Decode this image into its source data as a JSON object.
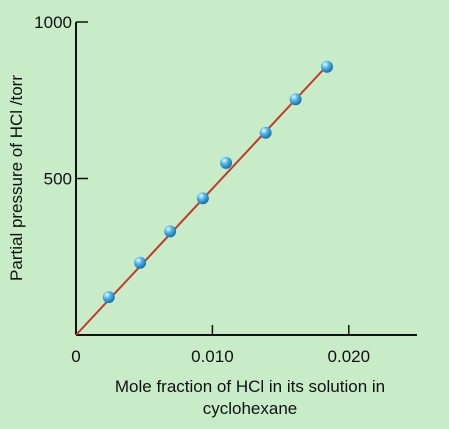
{
  "chart_data": {
    "type": "scatter",
    "xlabel_lines": [
      "Mole fraction of HCl in its solution in",
      "cyclohexane"
    ],
    "ylabel": "Partial pressure of HCl /torr",
    "xlim": [
      0,
      0.025
    ],
    "ylim": [
      0,
      1000
    ],
    "x_ticks": [
      {
        "value": 0,
        "label": "0"
      },
      {
        "value": 0.01,
        "label": "0.010"
      },
      {
        "value": 0.02,
        "label": "0.020"
      }
    ],
    "y_ticks": [
      {
        "value": 500,
        "label": "500"
      },
      {
        "value": 1000,
        "label": "1000"
      }
    ],
    "grid": false,
    "series": [
      {
        "points": [
          {
            "x": 0.0024,
            "y": 121
          },
          {
            "x": 0.0047,
            "y": 231
          },
          {
            "x": 0.0069,
            "y": 331
          },
          {
            "x": 0.0093,
            "y": 437
          },
          {
            "x": 0.011,
            "y": 550
          },
          {
            "x": 0.0139,
            "y": 646
          },
          {
            "x": 0.0161,
            "y": 753
          },
          {
            "x": 0.0184,
            "y": 857
          }
        ]
      }
    ],
    "fit_line": {
      "x0": 0,
      "y0": 0,
      "x1": 0.0185,
      "y1": 865
    },
    "colors": {
      "background": "#c8ebc8",
      "line": "#c0392b",
      "marker": "#3aa7e0",
      "axis": "#111111"
    }
  }
}
